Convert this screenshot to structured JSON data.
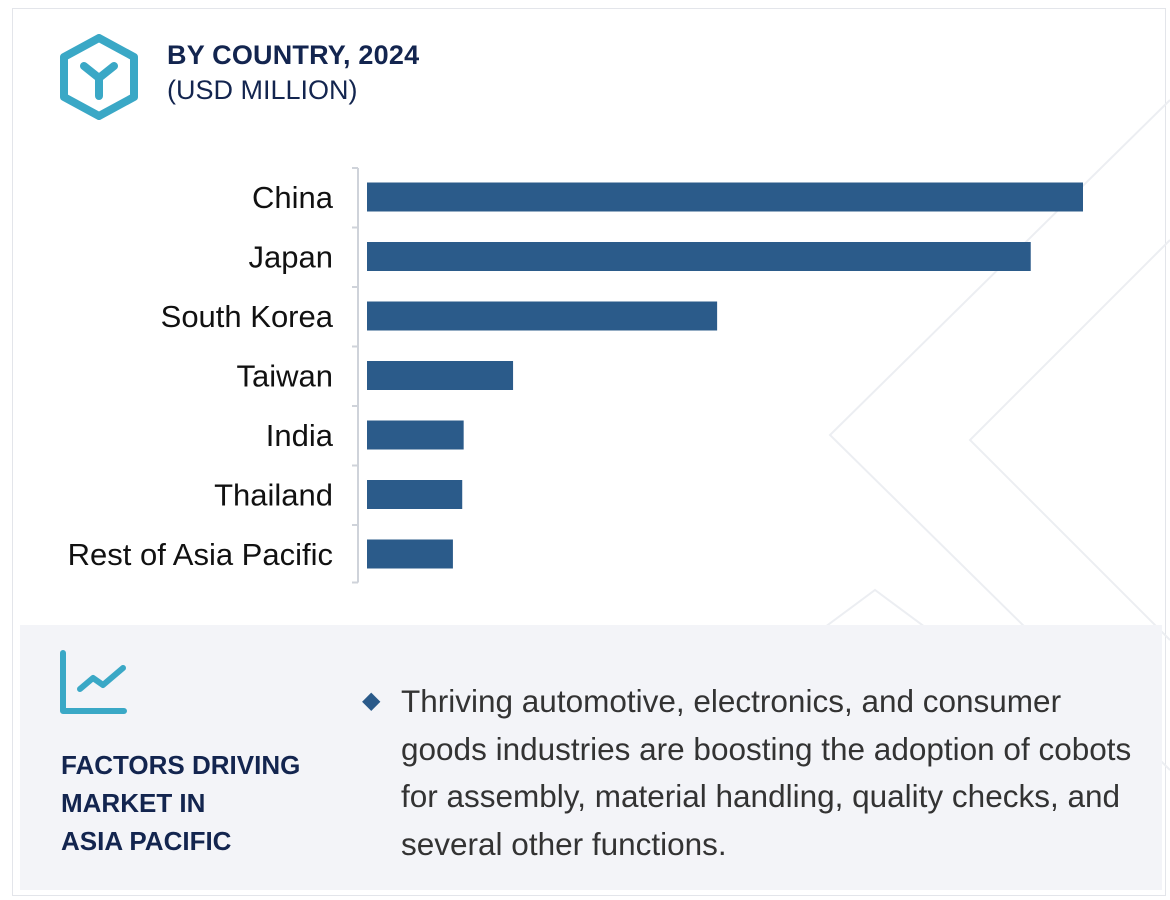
{
  "header": {
    "title": "BY COUNTRY, 2024",
    "subtitle": "(USD MILLION)",
    "logo_icon": "hexagon-y-logo"
  },
  "chart_data": {
    "type": "bar",
    "orientation": "horizontal",
    "title": "BY COUNTRY, 2024",
    "subtitle": "(USD MILLION)",
    "categories": [
      "China",
      "Japan",
      "South Korea",
      "Taiwan",
      "India",
      "Thailand",
      "Rest of Asia Pacific"
    ],
    "values": [
      100,
      92.7,
      48.9,
      20.4,
      13.5,
      13.3,
      12.0
    ],
    "value_note_relative": true,
    "xlim": [
      0,
      100
    ],
    "grid": false,
    "legend": "none",
    "bar_color": "#2b5b8a"
  },
  "factors": {
    "icon": "line-chart-icon",
    "title_lines": [
      "FACTORS DRIVING",
      "MARKET IN",
      "ASIA PACIFIC"
    ],
    "bullet_icon": "diamond-bullet",
    "text": "Thriving automotive, electronics, and consumer goods industries are boosting the adoption of cobots for assembly, material handling, quality checks, and several other functions."
  },
  "colors": {
    "navy": "#13254f",
    "accent": "#3aa8c6",
    "bar": "#2b5b8a",
    "panel": "#f3f4f8"
  }
}
